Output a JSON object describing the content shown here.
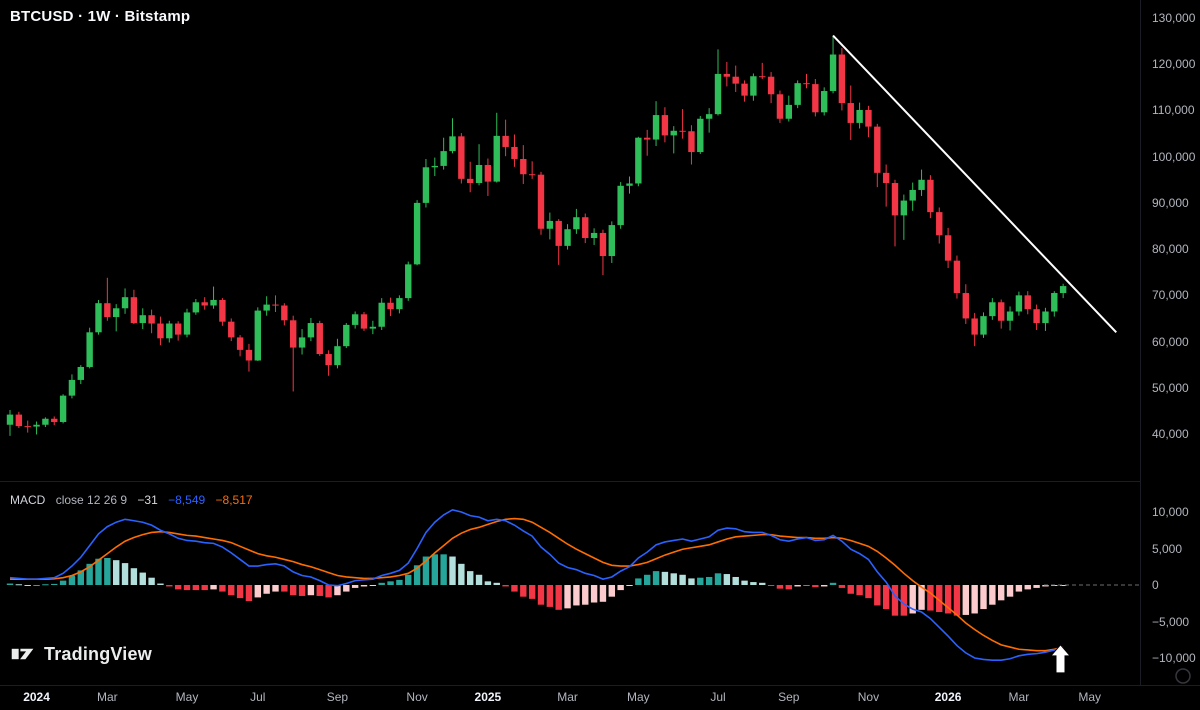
{
  "header": {
    "title": "BTCUSD · 1W · Bitstamp"
  },
  "macd_label": {
    "name": "MACD",
    "params": "close 12 26 9",
    "hist_value": "−31",
    "macd_value": "−8,549",
    "signal_value": "−8,517"
  },
  "logo": {
    "text": "TradingView"
  },
  "colors": {
    "background": "#000000",
    "up": "#2ebd59",
    "down": "#f23645",
    "macd_line": "#2962ff",
    "signal_line": "#ff6d00",
    "hist_pos": "#26a69a",
    "hist_pos_weak": "#b2dfdb",
    "hist_neg": "#f23645",
    "hist_neg_weak": "#fccbcd",
    "trendline": "#ffffff",
    "arrow": "#ffffff",
    "axis_text": "#b2b5be",
    "axis_text_major": "#f0f3fa",
    "separator": "#1a1d24",
    "zero_dash": "#6b6e76",
    "title_text": "#f8f9fd",
    "label_text": "#d1d4dc",
    "label_dim": "#b2b5be",
    "hist_value_color": "#d7d9dd",
    "logo_text": "#eceded",
    "icon_stroke": "#4b4e58"
  },
  "price_axis": {
    "ticks": [
      {
        "label": "130,000",
        "value": 130000
      },
      {
        "label": "120,000",
        "value": 120000
      },
      {
        "label": "110,000",
        "value": 110000
      },
      {
        "label": "100,000",
        "value": 100000
      },
      {
        "label": "90,000",
        "value": 90000
      },
      {
        "label": "80,000",
        "value": 80000
      },
      {
        "label": "70,000",
        "value": 70000
      },
      {
        "label": "60,000",
        "value": 60000
      },
      {
        "label": "50,000",
        "value": 50000
      },
      {
        "label": "40,000",
        "value": 40000
      }
    ]
  },
  "macd_axis": {
    "ticks": [
      {
        "label": "10,000",
        "value": 10000
      },
      {
        "label": "5,000",
        "value": 5000
      },
      {
        "label": "0",
        "value": 0
      },
      {
        "label": "−5,000",
        "value": -5000
      },
      {
        "label": "−10,000",
        "value": -10000
      }
    ]
  },
  "time_axis": {
    "ticks": [
      {
        "label": "2024",
        "index": 3,
        "major": true
      },
      {
        "label": "Mar",
        "index": 11,
        "major": false
      },
      {
        "label": "May",
        "index": 20,
        "major": false
      },
      {
        "label": "Jul",
        "index": 28,
        "major": false
      },
      {
        "label": "Sep",
        "index": 37,
        "major": false
      },
      {
        "label": "Nov",
        "index": 46,
        "major": false
      },
      {
        "label": "2025",
        "index": 54,
        "major": true
      },
      {
        "label": "Mar",
        "index": 63,
        "major": false
      },
      {
        "label": "May",
        "index": 71,
        "major": false
      },
      {
        "label": "Jul",
        "index": 80,
        "major": false
      },
      {
        "label": "Sep",
        "index": 88,
        "major": false
      },
      {
        "label": "Nov",
        "index": 97,
        "major": false
      },
      {
        "label": "2026",
        "index": 106,
        "major": true
      },
      {
        "label": "Mar",
        "index": 114,
        "major": false
      },
      {
        "label": "May",
        "index": 122,
        "major": false
      }
    ]
  },
  "chart_data": {
    "type": "candlestick",
    "symbol": "BTCUSD",
    "interval": "1W",
    "exchange": "Bitstamp",
    "x_range": "weekly candles, Jan 2024 – Apr 2026",
    "price_axis_range": [
      40000,
      130000
    ],
    "indicator": {
      "name": "MACD",
      "source": "close",
      "params": [
        12,
        26,
        9
      ],
      "last_values": {
        "hist": -31,
        "macd": -8549,
        "signal": -8517
      },
      "axis_range": [
        -10000,
        10000
      ]
    },
    "candles": [
      [
        42000,
        45200,
        39600,
        44200
      ],
      [
        44200,
        44800,
        41300,
        41700
      ],
      [
        41700,
        42900,
        40300,
        41600
      ],
      [
        41600,
        42700,
        39900,
        42000
      ],
      [
        42000,
        43600,
        41500,
        43300
      ],
      [
        43300,
        43800,
        41900,
        42600
      ],
      [
        42600,
        48600,
        42300,
        48300
      ],
      [
        48300,
        52900,
        47700,
        51700
      ],
      [
        51700,
        54900,
        50800,
        54500
      ],
      [
        54500,
        63000,
        54200,
        62000
      ],
      [
        62000,
        69000,
        61500,
        68300
      ],
      [
        68300,
        73800,
        64500,
        65300
      ],
      [
        65300,
        68100,
        62200,
        67200
      ],
      [
        67200,
        71500,
        66000,
        69600
      ],
      [
        69600,
        71200,
        63800,
        64000
      ],
      [
        64000,
        67200,
        62700,
        65700
      ],
      [
        65700,
        66900,
        61800,
        63900
      ],
      [
        63900,
        65400,
        59200,
        60700
      ],
      [
        60700,
        64500,
        59800,
        63900
      ],
      [
        63900,
        64400,
        60200,
        61500
      ],
      [
        61500,
        67100,
        60900,
        66300
      ],
      [
        66300,
        69200,
        65800,
        68500
      ],
      [
        68500,
        69600,
        66900,
        67800
      ],
      [
        67800,
        71900,
        67100,
        69000
      ],
      [
        69000,
        69400,
        63400,
        64300
      ],
      [
        64300,
        65000,
        60100,
        60900
      ],
      [
        60900,
        61400,
        56800,
        58200
      ],
      [
        58200,
        59500,
        53500,
        55900
      ],
      [
        55900,
        67400,
        55800,
        66700
      ],
      [
        66700,
        69800,
        65600,
        68000
      ],
      [
        68000,
        70000,
        66400,
        67800
      ],
      [
        67800,
        68300,
        63500,
        64600
      ],
      [
        64600,
        65600,
        49200,
        58700
      ],
      [
        58700,
        62700,
        57200,
        60900
      ],
      [
        60900,
        65100,
        60100,
        64000
      ],
      [
        64000,
        64500,
        56900,
        57300
      ],
      [
        57300,
        58100,
        52600,
        54900
      ],
      [
        54900,
        60600,
        54200,
        59000
      ],
      [
        59000,
        64000,
        58600,
        63600
      ],
      [
        63600,
        66500,
        62800,
        65900
      ],
      [
        65900,
        66400,
        62300,
        62800
      ],
      [
        62800,
        64500,
        61600,
        63200
      ],
      [
        63200,
        69400,
        62500,
        68400
      ],
      [
        68400,
        69500,
        65500,
        67000
      ],
      [
        67000,
        70000,
        66100,
        69400
      ],
      [
        69400,
        77300,
        68800,
        76700
      ],
      [
        76700,
        90600,
        76500,
        90000
      ],
      [
        90000,
        99500,
        89000,
        97700
      ],
      [
        97700,
        99800,
        95800,
        98000
      ],
      [
        98000,
        104100,
        97200,
        101200
      ],
      [
        101200,
        108300,
        100700,
        104400
      ],
      [
        104400,
        105100,
        94200,
        95200
      ],
      [
        95200,
        98900,
        92300,
        94300
      ],
      [
        94300,
        102700,
        93800,
        98200
      ],
      [
        98200,
        99600,
        91500,
        94600
      ],
      [
        94600,
        109500,
        94400,
        104500
      ],
      [
        104500,
        108000,
        100100,
        102100
      ],
      [
        102100,
        104800,
        97800,
        99500
      ],
      [
        99500,
        102500,
        94100,
        96200
      ],
      [
        96200,
        99000,
        95200,
        96100
      ],
      [
        96100,
        96700,
        83100,
        84400
      ],
      [
        84400,
        87900,
        82100,
        86100
      ],
      [
        86100,
        86500,
        76600,
        80700
      ],
      [
        80700,
        85400,
        79900,
        84300
      ],
      [
        84300,
        88700,
        83300,
        86900
      ],
      [
        86900,
        87700,
        81300,
        82400
      ],
      [
        82400,
        84500,
        80900,
        83500
      ],
      [
        83500,
        84200,
        74400,
        78500
      ],
      [
        78500,
        86000,
        77000,
        85200
      ],
      [
        85200,
        94500,
        84400,
        93700
      ],
      [
        93700,
        95700,
        92000,
        94200
      ],
      [
        94200,
        104300,
        93600,
        104100
      ],
      [
        104100,
        105800,
        100200,
        103700
      ],
      [
        103700,
        112000,
        102300,
        109000
      ],
      [
        109000,
        110700,
        103100,
        104600
      ],
      [
        104600,
        106600,
        100700,
        105600
      ],
      [
        105600,
        110300,
        103900,
        105500
      ],
      [
        105500,
        106800,
        98300,
        101000
      ],
      [
        101000,
        108800,
        100600,
        108200
      ],
      [
        108200,
        110500,
        105200,
        109200
      ],
      [
        109200,
        123200,
        108900,
        117900
      ],
      [
        117900,
        120500,
        115200,
        117300
      ],
      [
        117300,
        119700,
        114000,
        115800
      ],
      [
        115800,
        116500,
        111900,
        113200
      ],
      [
        113200,
        118000,
        112100,
        117400
      ],
      [
        117400,
        120300,
        116800,
        117300
      ],
      [
        117300,
        118300,
        111600,
        113500
      ],
      [
        113500,
        114300,
        107300,
        108200
      ],
      [
        108200,
        113200,
        107600,
        111200
      ],
      [
        111200,
        116500,
        110500,
        115900
      ],
      [
        115900,
        117900,
        114800,
        115700
      ],
      [
        115700,
        116800,
        108700,
        109600
      ],
      [
        109600,
        115000,
        108900,
        114200
      ],
      [
        114200,
        126200,
        113700,
        122100
      ],
      [
        122100,
        123500,
        110000,
        111600
      ],
      [
        111600,
        115400,
        103600,
        107300
      ],
      [
        107300,
        111700,
        106100,
        110100
      ],
      [
        110100,
        111000,
        104200,
        106500
      ],
      [
        106500,
        107100,
        93400,
        96500
      ],
      [
        96500,
        98300,
        89200,
        94300
      ],
      [
        94300,
        95000,
        80600,
        87300
      ],
      [
        87300,
        91800,
        82000,
        90500
      ],
      [
        90500,
        94400,
        88300,
        92800
      ],
      [
        92800,
        97200,
        91500,
        95000
      ],
      [
        95000,
        96000,
        86700,
        88000
      ],
      [
        88000,
        89000,
        81200,
        83000
      ],
      [
        83000,
        84600,
        75900,
        77500
      ],
      [
        77500,
        78600,
        69300,
        70500
      ],
      [
        70500,
        72400,
        63800,
        65000
      ],
      [
        65000,
        66200,
        59000,
        61500
      ],
      [
        61500,
        66300,
        60800,
        65500
      ],
      [
        65500,
        69400,
        64700,
        68500
      ],
      [
        68500,
        69100,
        62800,
        64500
      ],
      [
        64500,
        67600,
        62400,
        66500
      ],
      [
        66500,
        70800,
        65600,
        70000
      ],
      [
        70000,
        70900,
        65900,
        67000
      ],
      [
        67000,
        68000,
        62500,
        64000
      ],
      [
        64000,
        67300,
        62300,
        66500
      ],
      [
        66500,
        70900,
        65400,
        70500
      ],
      [
        70500,
        72500,
        69400,
        72000
      ]
    ],
    "macd": {
      "macd": [
        1000,
        900,
        800,
        800,
        900,
        1000,
        1600,
        2600,
        3800,
        5400,
        7000,
        8000,
        8600,
        9000,
        8800,
        8600,
        8200,
        7500,
        7000,
        6400,
        6100,
        6000,
        5800,
        5700,
        5200,
        4400,
        3500,
        2600,
        2600,
        2800,
        2900,
        2600,
        1800,
        1300,
        1100,
        600,
        0,
        -100,
        200,
        600,
        700,
        800,
        1300,
        1600,
        2000,
        3000,
        5000,
        7200,
        8600,
        9600,
        10300,
        10000,
        9500,
        9300,
        8800,
        9000,
        8800,
        8200,
        7400,
        6700,
        5200,
        4200,
        3000,
        2400,
        2100,
        1600,
        1300,
        800,
        1100,
        1900,
        2500,
        3700,
        4500,
        5500,
        5900,
        6100,
        6300,
        6000,
        6300,
        6600,
        7500,
        7800,
        7700,
        7300,
        7200,
        7200,
        6800,
        6200,
        6000,
        6300,
        6500,
        6100,
        6200,
        6800,
        6000,
        4900,
        4300,
        3500,
        1800,
        400,
        -1500,
        -2600,
        -3300,
        -3700,
        -4600,
        -5800,
        -7000,
        -8300,
        -9300,
        -10000,
        -10200,
        -10300,
        -10300,
        -10100,
        -9700,
        -9500,
        -9400,
        -9200,
        -8900,
        -8549
      ],
      "signal": [
        800,
        800,
        800,
        800,
        800,
        850,
        1000,
        1300,
        1800,
        2500,
        3400,
        4300,
        5200,
        6000,
        6500,
        6900,
        7200,
        7300,
        7200,
        7000,
        6800,
        6700,
        6500,
        6300,
        6100,
        5800,
        5300,
        4800,
        4300,
        4000,
        3800,
        3500,
        3200,
        2800,
        2500,
        2100,
        1700,
        1300,
        1100,
        1000,
        900,
        900,
        1000,
        1100,
        1300,
        1600,
        2300,
        3300,
        4400,
        5400,
        6400,
        7100,
        7600,
        7900,
        8300,
        8700,
        9000,
        9100,
        9000,
        8600,
        7900,
        7200,
        6400,
        5600,
        4900,
        4300,
        3700,
        3100,
        2700,
        2600,
        2600,
        2800,
        3100,
        3600,
        4100,
        4500,
        4900,
        5100,
        5300,
        5500,
        5900,
        6300,
        6600,
        6700,
        6800,
        6900,
        6900,
        6700,
        6600,
        6500,
        6500,
        6400,
        6400,
        6500,
        6400,
        6100,
        5700,
        5300,
        4600,
        3700,
        2700,
        1600,
        600,
        -300,
        -1100,
        -2100,
        -3100,
        -4100,
        -5200,
        -6100,
        -6900,
        -7600,
        -8200,
        -8500,
        -8800,
        -8900,
        -9000,
        -9000,
        -8800,
        -8517
      ],
      "hist": [
        200,
        100,
        0,
        0,
        100,
        150,
        600,
        1300,
        2000,
        2900,
        3600,
        3700,
        3400,
        3000,
        2300,
        1700,
        1000,
        200,
        -200,
        -600,
        -700,
        -700,
        -700,
        -600,
        -900,
        -1400,
        -1800,
        -2200,
        -1700,
        -1200,
        -900,
        -900,
        -1400,
        -1500,
        -1400,
        -1500,
        -1700,
        -1400,
        -900,
        -400,
        -200,
        -100,
        300,
        500,
        700,
        1400,
        2700,
        3900,
        4200,
        4200,
        3900,
        2900,
        1900,
        1400,
        500,
        300,
        -200,
        -900,
        -1600,
        -1900,
        -2700,
        -3000,
        -3400,
        -3200,
        -2800,
        -2700,
        -2400,
        -2300,
        -1600,
        -700,
        -100,
        900,
        1400,
        1900,
        1800,
        1600,
        1400,
        900,
        1000,
        1100,
        1600,
        1500,
        1100,
        600,
        400,
        300,
        -100,
        -500,
        -600,
        -200,
        0,
        -300,
        -200,
        300,
        -400,
        -1200,
        -1400,
        -1800,
        -2800,
        -3300,
        -4200,
        -4200,
        -3900,
        -3400,
        -3500,
        -3700,
        -3900,
        -4200,
        -4100,
        -3900,
        -3300,
        -2700,
        -2100,
        -1600,
        -900,
        -600,
        -400,
        -200,
        -100,
        -31
      ]
    },
    "trendline": {
      "from": {
        "index": 93,
        "price": 126200
      },
      "to": {
        "index": 125,
        "price": 62000
      }
    },
    "arrow_marker": {
      "index": 118.7,
      "tip_value": -8200
    }
  }
}
